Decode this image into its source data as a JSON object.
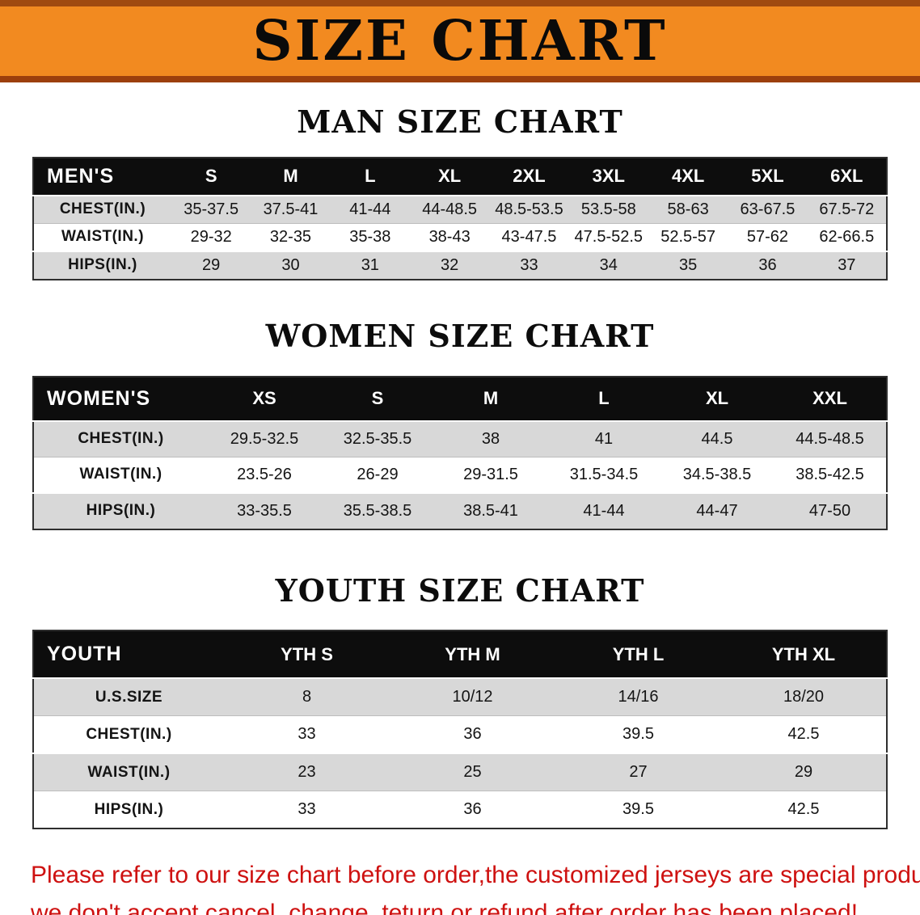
{
  "banner": {
    "title": "SIZE CHART"
  },
  "sections": [
    {
      "id": "men",
      "heading": "MAN SIZE CHART",
      "table": {
        "header": [
          "MEN'S",
          "S",
          "M",
          "L",
          "XL",
          "2XL",
          "3XL",
          "4XL",
          "5XL",
          "6XL"
        ],
        "rows": [
          [
            "CHEST(IN.)",
            "35-37.5",
            "37.5-41",
            "41-44",
            "44-48.5",
            "48.5-53.5",
            "53.5-58",
            "58-63",
            "63-67.5",
            "67.5-72"
          ],
          [
            "WAIST(IN.)",
            "29-32",
            "32-35",
            "35-38",
            "38-43",
            "43-47.5",
            "47.5-52.5",
            "52.5-57",
            "57-62",
            "62-66.5"
          ],
          [
            "HIPS(IN.)",
            "29",
            "30",
            "31",
            "32",
            "33",
            "34",
            "35",
            "36",
            "37"
          ]
        ]
      }
    },
    {
      "id": "women",
      "heading": "WOMEN SIZE CHART",
      "table": {
        "header": [
          "WOMEN'S",
          "XS",
          "S",
          "M",
          "L",
          "XL",
          "XXL"
        ],
        "rows": [
          [
            "CHEST(IN.)",
            "29.5-32.5",
            "32.5-35.5",
            "38",
            "41",
            "44.5",
            "44.5-48.5"
          ],
          [
            "WAIST(IN.)",
            "23.5-26",
            "26-29",
            "29-31.5",
            "31.5-34.5",
            "34.5-38.5",
            "38.5-42.5"
          ],
          [
            "HIPS(IN.)",
            "33-35.5",
            "35.5-38.5",
            "38.5-41",
            "41-44",
            "44-47",
            "47-50"
          ]
        ]
      }
    },
    {
      "id": "youth",
      "heading": "YOUTH SIZE CHART",
      "table": {
        "header": [
          "YOUTH",
          "YTH S",
          "YTH M",
          "YTH L",
          "YTH XL"
        ],
        "rows": [
          [
            "U.S.SIZE",
            "8",
            "10/12",
            "14/16",
            "18/20"
          ],
          [
            "CHEST(IN.)",
            "33",
            "36",
            "39.5",
            "42.5"
          ],
          [
            "WAIST(IN.)",
            "23",
            "25",
            "27",
            "29"
          ],
          [
            "HIPS(IN.)",
            "33",
            "36",
            "39.5",
            "42.5"
          ]
        ]
      }
    }
  ],
  "footer": {
    "lines": [
      "Please refer to our size chart before order,the customized jerseys are special products,",
      "we don't accept cancel, change, teturn or refund after order has been placed!"
    ]
  },
  "colors": {
    "banner_orange": "#f28a20",
    "banner_edge_top": "#a04a10",
    "banner_edge_bottom": "#9c3f0c",
    "header_black": "#0d0d0d",
    "row_gray": "#d8d8d8",
    "disclaimer_red": "#ce1110"
  }
}
